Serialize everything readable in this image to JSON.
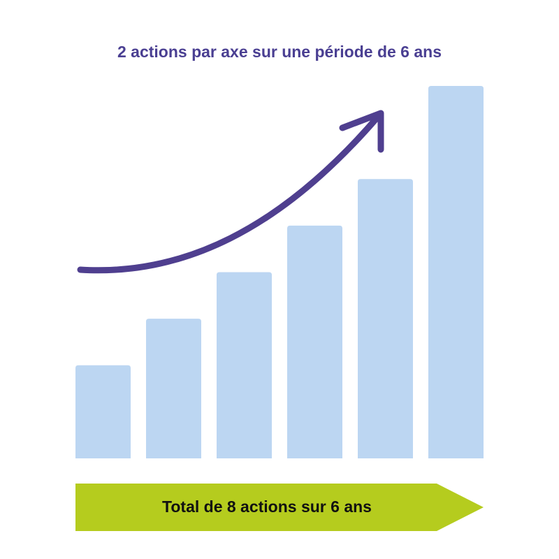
{
  "chart_data": {
    "type": "bar",
    "title": "2 actions par axe sur une période de 6 ans",
    "annotation": "Total de 8 actions sur 6 ans",
    "categories": [
      null,
      null,
      null,
      null,
      null,
      null
    ],
    "values": [
      2,
      3,
      4,
      5,
      6,
      8
    ],
    "color": "#bcd6f2",
    "ylim": [
      0,
      8
    ]
  }
}
